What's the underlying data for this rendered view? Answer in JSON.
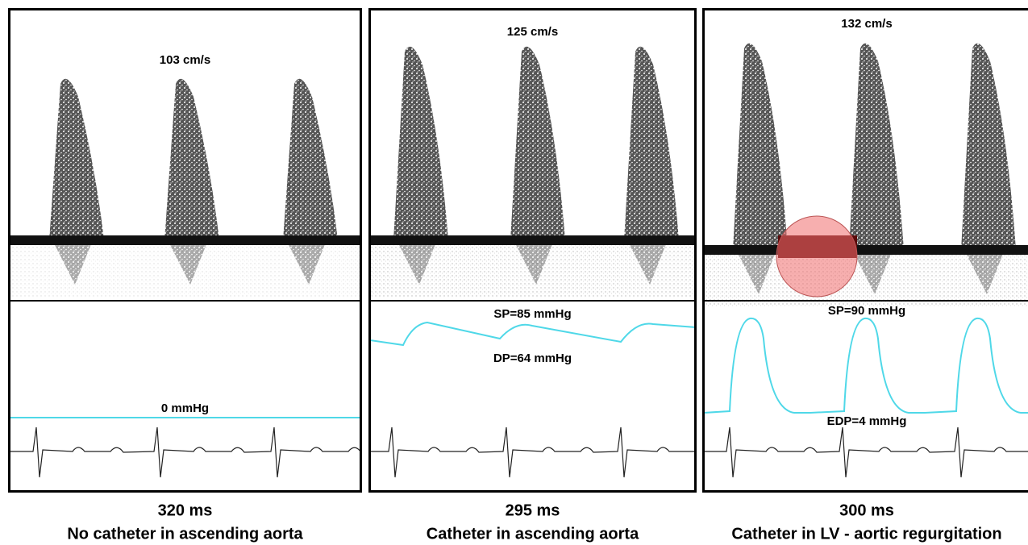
{
  "panels": [
    {
      "velocity": "103 cm/s",
      "pressure_labels": [
        "0 mmHg"
      ],
      "interval": "320 ms",
      "caption": "No catheter in ascending aorta"
    },
    {
      "velocity": "125 cm/s",
      "pressure_labels": [
        "SP=85 mmHg",
        "DP=64 mmHg"
      ],
      "interval": "295 ms",
      "caption": "Catheter in ascending aorta"
    },
    {
      "velocity": "132 cm/s",
      "pressure_labels": [
        "SP=90 mmHg",
        "EDP=4 mmHg"
      ],
      "interval": "300 ms",
      "caption": "Catheter in LV - aortic regurgitation"
    }
  ]
}
